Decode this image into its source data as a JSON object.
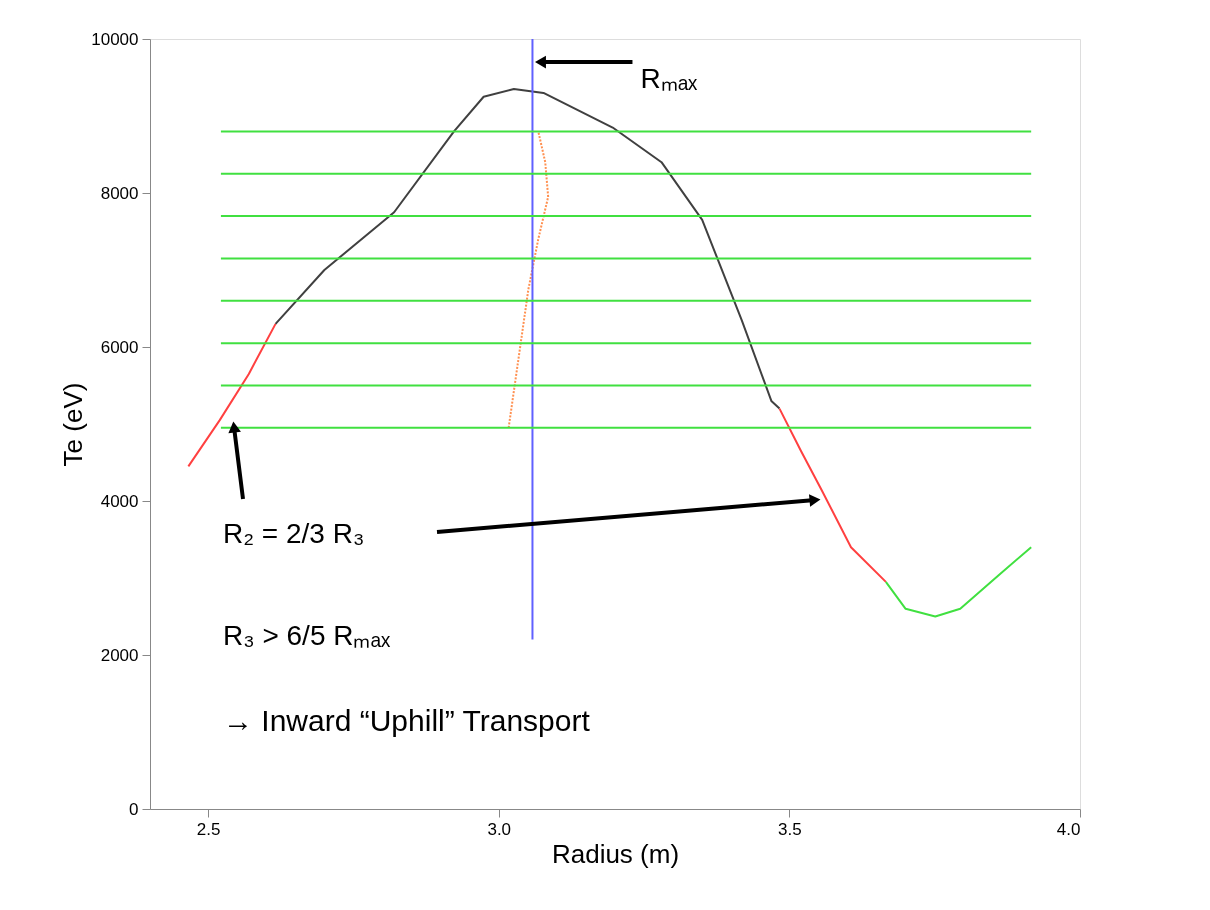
{
  "chart_data": {
    "type": "line",
    "xlabel": "Radius (m)",
    "ylabel": "Te (eV)",
    "xlim": [
      2.4,
      4.0
    ],
    "ylim": [
      0,
      10000
    ],
    "xticks": [
      2.5,
      {
        "value": 3.0,
        "label": "3.0"
      },
      3.5,
      {
        "value": 4.0,
        "label": "4.0"
      }
    ],
    "yticks": [
      0,
      2000,
      4000,
      6000,
      8000,
      10000
    ],
    "grid": false,
    "marker": "none",
    "series": [
      {
        "color": "#ff4040",
        "x": [
          2.466,
          2.52,
          2.57,
          2.616
        ],
        "values": [
          4450,
          5050,
          5650,
          6300
        ]
      },
      {
        "color": "#404040",
        "x": [
          2.616,
          2.7,
          2.82,
          2.923,
          2.974,
          3.026,
          3.077,
          3.196,
          3.28,
          3.35,
          3.418,
          3.469,
          3.483
        ],
        "values": [
          6300,
          7000,
          7750,
          8800,
          9250,
          9350,
          9300,
          8850,
          8400,
          7650,
          6350,
          5300,
          5200
        ]
      },
      {
        "color": "#ff4040",
        "x": [
          3.483,
          3.52,
          3.555,
          3.606,
          3.666
        ],
        "values": [
          5200,
          4650,
          4150,
          3400,
          2950
        ]
      },
      {
        "color": "#40e040",
        "x": [
          3.666,
          3.7,
          3.751,
          3.794,
          3.862,
          3.916
        ],
        "values": [
          2950,
          2600,
          2500,
          2600,
          3050,
          3400
        ]
      },
      {
        "color": "#ff9050",
        "line_style": "dotted",
        "x": [
          3.017,
          3.034,
          3.051,
          3.068,
          3.085,
          3.08,
          3.068
        ],
        "values": [
          4950,
          5850,
          6750,
          7400,
          7950,
          8400,
          8800
        ]
      },
      {
        "color": "#6060ff",
        "x": [
          3.058,
          3.058
        ],
        "values": [
          2200,
          10000
        ]
      },
      {
        "color": "#40e040",
        "x": [
          2.522,
          3.916
        ],
        "values": [
          8800,
          8800
        ]
      },
      {
        "color": "#40e040",
        "x": [
          2.522,
          3.916
        ],
        "values": [
          8250,
          8250
        ]
      },
      {
        "color": "#40e040",
        "x": [
          2.522,
          3.916
        ],
        "values": [
          7700,
          7700
        ]
      },
      {
        "color": "#40e040",
        "x": [
          2.522,
          3.916
        ],
        "values": [
          7150,
          7150
        ]
      },
      {
        "color": "#40e040",
        "x": [
          2.522,
          3.916
        ],
        "values": [
          6600,
          6600
        ]
      },
      {
        "color": "#40e040",
        "x": [
          2.522,
          3.916
        ],
        "values": [
          6050,
          6050
        ]
      },
      {
        "color": "#40e040",
        "x": [
          2.522,
          3.916
        ],
        "values": [
          5500,
          5500
        ]
      },
      {
        "color": "#40e040",
        "x": [
          2.522,
          3.916
        ],
        "values": [
          4950,
          4950
        ]
      }
    ],
    "annotations": [
      {
        "text": "Rₘₐₓ",
        "x": 3.058,
        "y": 9700
      },
      "R₂ = 2/3 R₃",
      "R₃ > 6/5 Rₘₐₓ",
      "→ Inward “Uphill” Transport"
    ]
  }
}
